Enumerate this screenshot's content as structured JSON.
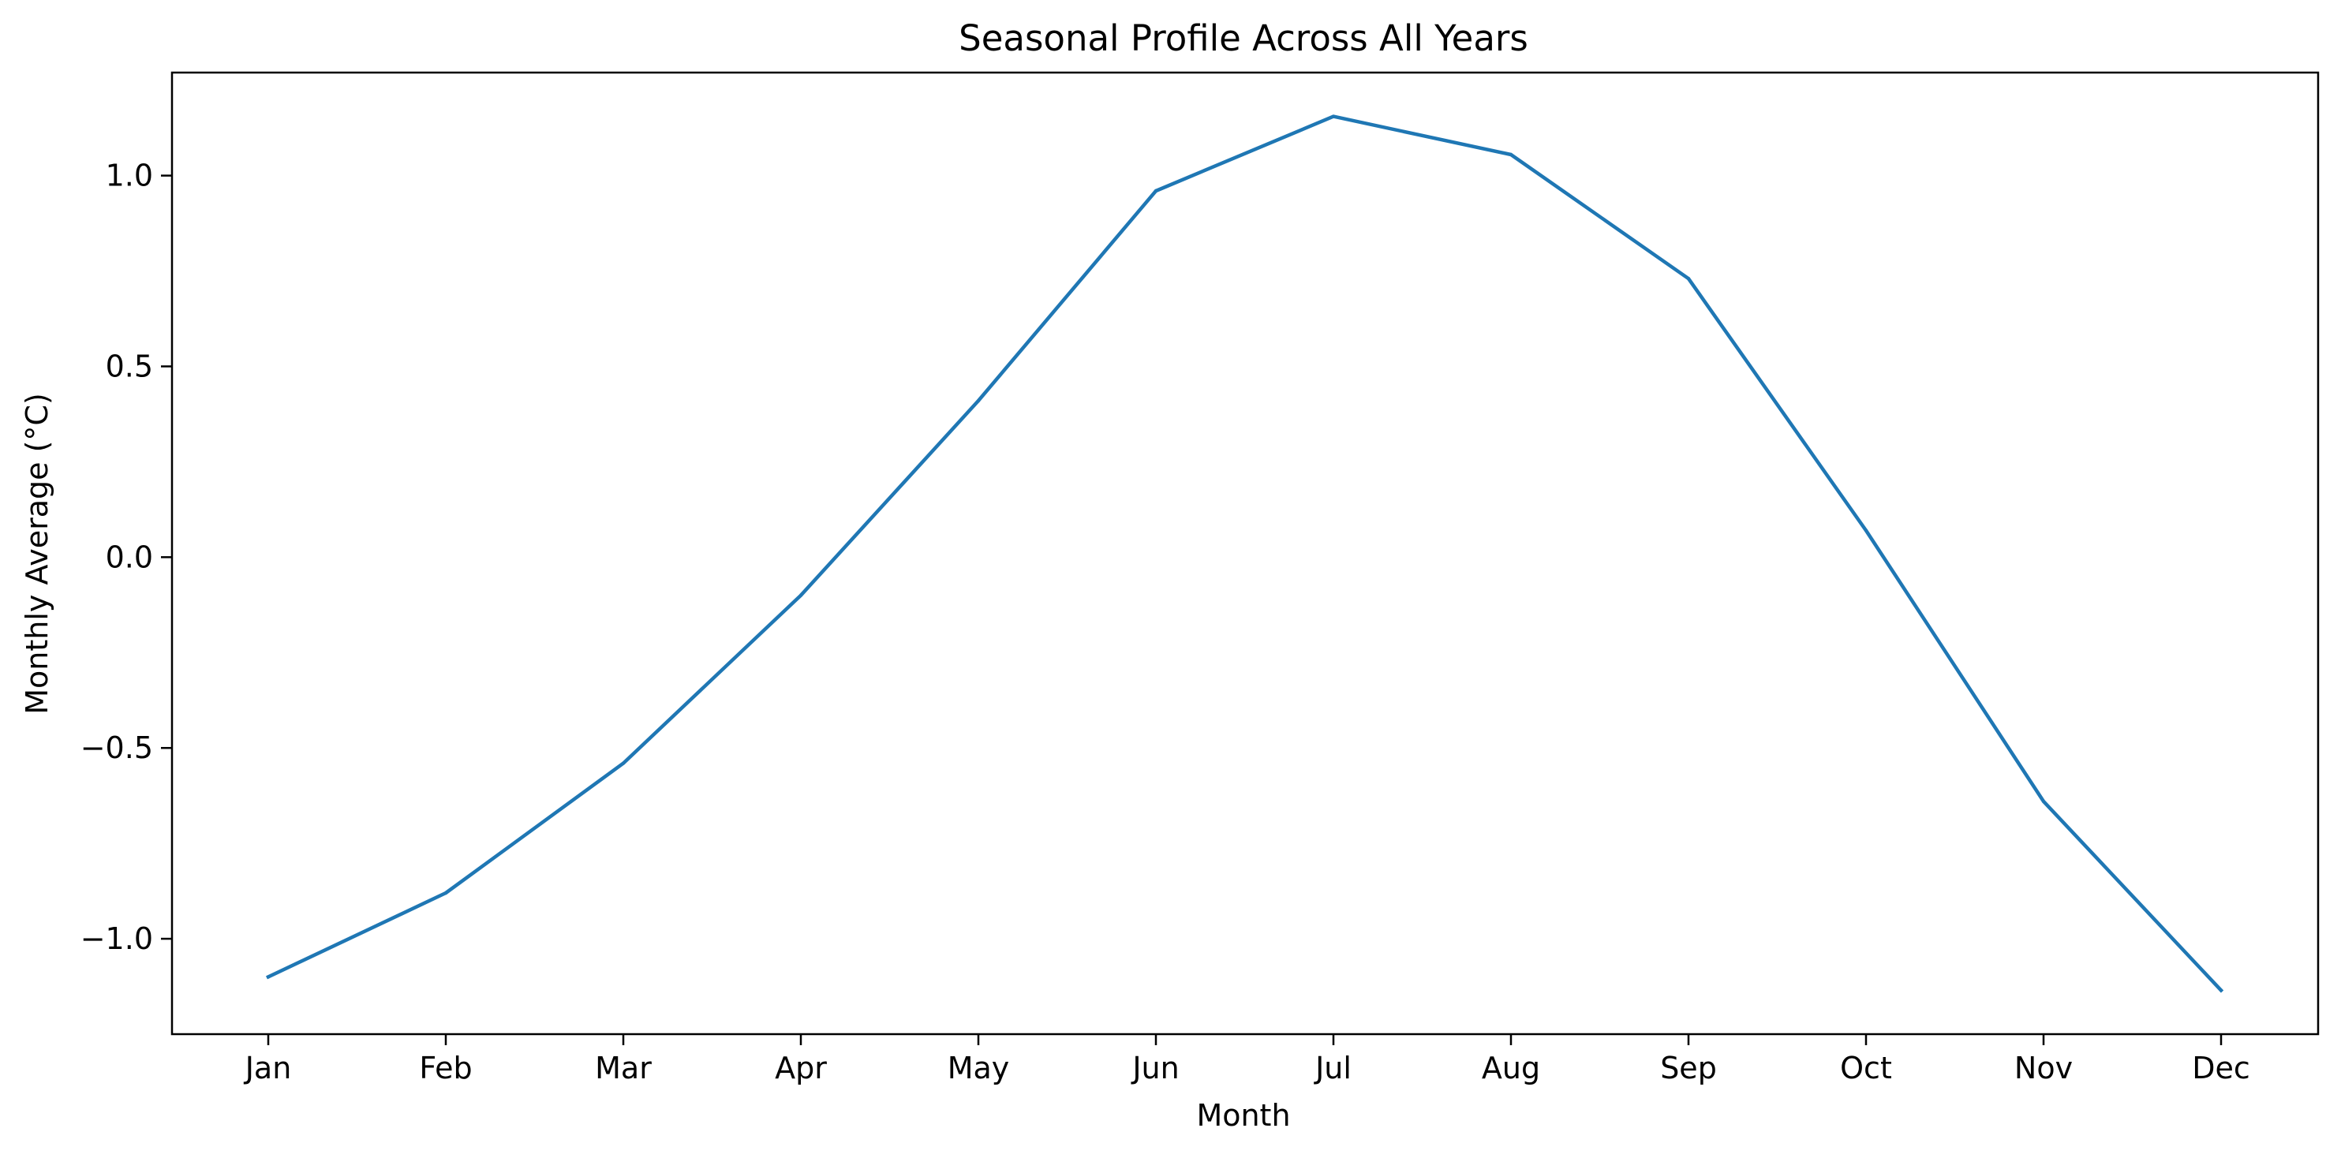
{
  "chart_data": {
    "type": "line",
    "title": "Seasonal Profile Across All Years",
    "xlabel": "Month",
    "ylabel": "Monthly Average (°C)",
    "categories": [
      "Jan",
      "Feb",
      "Mar",
      "Apr",
      "May",
      "Jun",
      "Jul",
      "Aug",
      "Sep",
      "Oct",
      "Nov",
      "Dec"
    ],
    "series": [
      {
        "values": [
          -1.1,
          -0.88,
          -0.54,
          -0.1,
          0.41,
          0.96,
          1.155,
          1.055,
          0.73,
          0.07,
          -0.64,
          -1.135
        ],
        "color": "#1f77b4"
      }
    ],
    "yticks": [
      -1.0,
      -0.5,
      0.0,
      0.5,
      1.0
    ],
    "ytick_labels": [
      "−1.0",
      "−0.5",
      "0.0",
      "0.5",
      "1.0"
    ],
    "ylim": [
      -1.25,
      1.27
    ],
    "grid": false,
    "legend": "none"
  }
}
